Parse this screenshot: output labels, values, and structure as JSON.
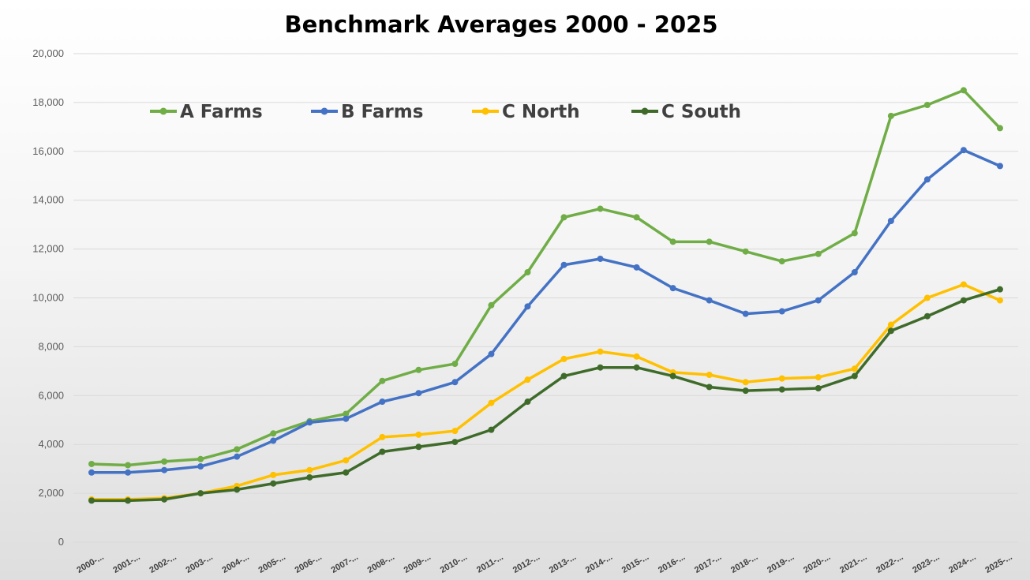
{
  "chart_data": {
    "type": "line",
    "title": "Benchmark Averages 2000 - 2025",
    "xlabel": "",
    "ylabel": "",
    "categories": [
      "2000-...",
      "2001-...",
      "2002-...",
      "2003-...",
      "2004-...",
      "2005-...",
      "2006-...",
      "2007-...",
      "2008-...",
      "2009-...",
      "2010-...",
      "2011-...",
      "2012-...",
      "2013-...",
      "2014-...",
      "2015-...",
      "2016-...",
      "2017-...",
      "2018-...",
      "2019-...",
      "2020-...",
      "2021-...",
      "2022-...",
      "2023-...",
      "2024-...",
      "2025-..."
    ],
    "ylim": [
      0,
      20000
    ],
    "yticks": [
      0,
      2000,
      4000,
      6000,
      8000,
      10000,
      12000,
      14000,
      16000,
      18000,
      20000
    ],
    "ytick_labels": [
      "0",
      "2,000",
      "4,000",
      "6,000",
      "8,000",
      "10,000",
      "12,000",
      "14,000",
      "16,000",
      "18,000",
      "20,000"
    ],
    "grid": true,
    "legend_position": "top",
    "series": [
      {
        "name": "A Farms",
        "color": "#70ad47",
        "values": [
          3200,
          3150,
          3300,
          3400,
          3800,
          4450,
          4950,
          5250,
          6600,
          7050,
          7300,
          9700,
          11050,
          13300,
          13650,
          13300,
          12300,
          12300,
          11900,
          11500,
          11800,
          12650,
          17450,
          17900,
          18500,
          16950
        ]
      },
      {
        "name": "B Farms",
        "color": "#4472c4",
        "values": [
          2850,
          2850,
          2950,
          3100,
          3500,
          4150,
          4900,
          5050,
          5750,
          6100,
          6550,
          7700,
          9650,
          11350,
          11600,
          11250,
          10400,
          9900,
          9350,
          9450,
          9900,
          11050,
          13150,
          14850,
          16050,
          15400
        ]
      },
      {
        "name": "C North",
        "color": "#ffc000",
        "values": [
          1750,
          1750,
          1800,
          2000,
          2300,
          2750,
          2950,
          3350,
          4300,
          4400,
          4550,
          5700,
          6650,
          7500,
          7800,
          7600,
          6950,
          6850,
          6550,
          6700,
          6750,
          7100,
          8900,
          10000,
          10550,
          9900
        ]
      },
      {
        "name": "C South",
        "color": "#3f6b2a",
        "values": [
          1700,
          1700,
          1750,
          2000,
          2150,
          2400,
          2650,
          2850,
          3700,
          3900,
          4100,
          4600,
          5750,
          6800,
          7150,
          7150,
          6800,
          6350,
          6200,
          6250,
          6300,
          6800,
          8650,
          9250,
          9900,
          10350
        ]
      }
    ]
  }
}
